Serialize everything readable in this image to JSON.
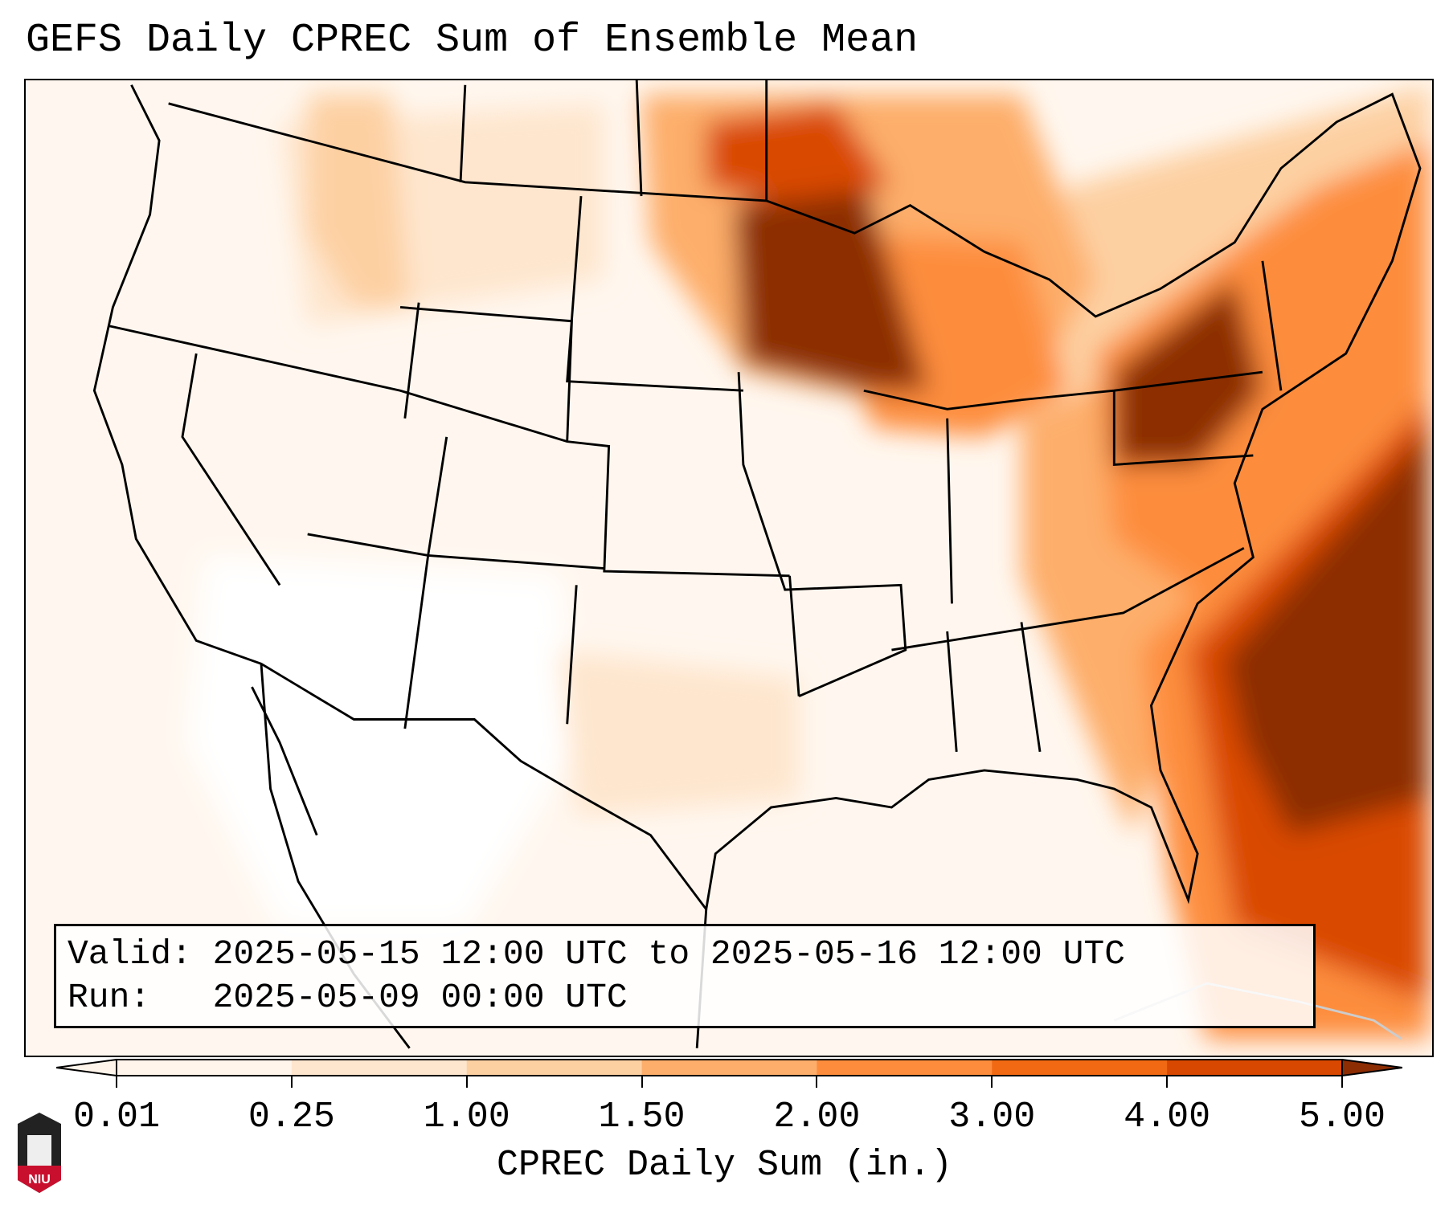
{
  "title": "GEFS Daily CPREC Sum of Ensemble Mean",
  "info": {
    "valid": "Valid: 2025-05-15 12:00 UTC to 2025-05-16 12:00 UTC",
    "run": "Run:   2025-05-09 00:00 UTC"
  },
  "colorbar": {
    "label": "CPREC Daily Sum (in.)",
    "ticks": [
      "0.01",
      "0.25",
      "1.00",
      "1.50",
      "2.00",
      "3.00",
      "4.00",
      "5.00"
    ],
    "colors": [
      "#fff5eb",
      "#fee6ce",
      "#fdd0a2",
      "#fdae6b",
      "#fd8d3c",
      "#f16913",
      "#d94801",
      "#8c2d04"
    ]
  },
  "logo": {
    "text": "NIU"
  }
}
